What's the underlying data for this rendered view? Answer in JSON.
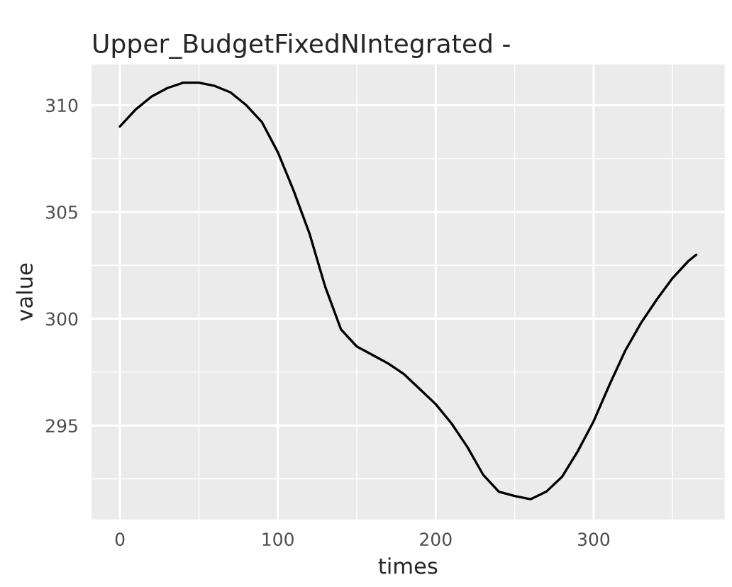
{
  "chart_data": {
    "type": "line",
    "title": "Upper_BudgetFixedNIntegrated -",
    "xlabel": "times",
    "ylabel": "value",
    "x": [
      0,
      10,
      20,
      30,
      40,
      50,
      60,
      70,
      80,
      90,
      100,
      110,
      120,
      130,
      140,
      150,
      160,
      170,
      180,
      190,
      200,
      210,
      220,
      230,
      240,
      250,
      260,
      270,
      280,
      290,
      300,
      310,
      320,
      330,
      340,
      350,
      360,
      365
    ],
    "series": [
      {
        "color": "#000000",
        "values": [
          309.0,
          309.8,
          310.4,
          310.8,
          311.05,
          311.05,
          310.9,
          310.6,
          310.0,
          309.2,
          307.8,
          306.0,
          304.0,
          301.5,
          299.5,
          298.7,
          298.3,
          297.9,
          297.4,
          296.7,
          296.0,
          295.1,
          294.0,
          292.7,
          291.9,
          291.7,
          291.55,
          291.9,
          292.6,
          293.8,
          295.2,
          296.9,
          298.5,
          299.8,
          300.9,
          301.9,
          302.7,
          303.0
        ]
      }
    ],
    "xlim": [
      -18,
      383
    ],
    "xticks": [
      0,
      100,
      200,
      300
    ],
    "ylim": [
      290.6,
      311.9
    ],
    "yticks": [
      295,
      300,
      305,
      310
    ],
    "grid": true,
    "marker": "none",
    "line_style": "solid"
  }
}
